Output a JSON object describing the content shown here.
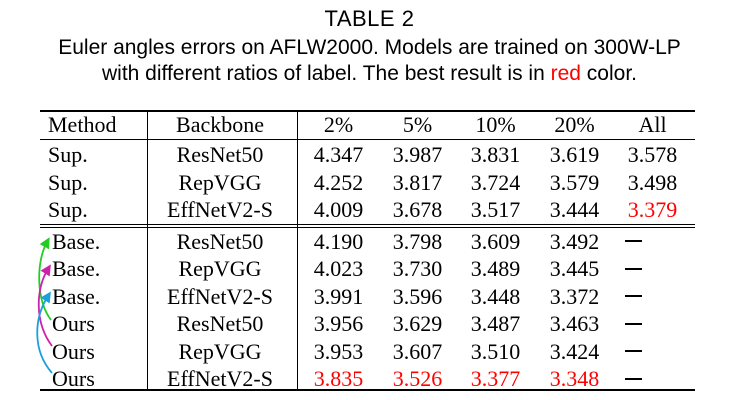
{
  "caption": {
    "table_number": "TABLE 2",
    "line1": "Euler angles errors on AFLW2000. Models are trained on 300W-LP",
    "line2_before": "with different ratios of label. The best result is in ",
    "line2_highlight": "red",
    "line2_after": " color."
  },
  "colors": {
    "text": "#000000",
    "best": "#ff0000",
    "arrow_resnet": "#22cc22",
    "arrow_repvgg": "#cc22aa",
    "arrow_effnet": "#1a9fe0"
  },
  "table": {
    "headers": [
      "Method",
      "Backbone",
      "2%",
      "5%",
      "10%",
      "20%",
      "All"
    ],
    "rows": [
      {
        "method": "Sup.",
        "backbone": "ResNet50",
        "v2": "4.347",
        "v5": "3.987",
        "v10": "3.831",
        "v20": "3.619",
        "all": "3.578"
      },
      {
        "method": "Sup.",
        "backbone": "RepVGG",
        "v2": "4.252",
        "v5": "3.817",
        "v10": "3.724",
        "v20": "3.579",
        "all": "3.498"
      },
      {
        "method": "Sup.",
        "backbone": "EffNetV2-S",
        "v2": "4.009",
        "v5": "3.678",
        "v10": "3.517",
        "v20": "3.444",
        "all": "3.379"
      },
      {
        "method": "Base.",
        "backbone": "ResNet50",
        "v2": "4.190",
        "v5": "3.798",
        "v10": "3.609",
        "v20": "3.492",
        "all": "—"
      },
      {
        "method": "Base.",
        "backbone": "RepVGG",
        "v2": "4.023",
        "v5": "3.730",
        "v10": "3.489",
        "v20": "3.445",
        "all": "—"
      },
      {
        "method": "Base.",
        "backbone": "EffNetV2-S",
        "v2": "3.991",
        "v5": "3.596",
        "v10": "3.448",
        "v20": "3.372",
        "all": "—"
      },
      {
        "method": "Ours",
        "backbone": "ResNet50",
        "v2": "3.956",
        "v5": "3.629",
        "v10": "3.487",
        "v20": "3.463",
        "all": "—"
      },
      {
        "method": "Ours",
        "backbone": "RepVGG",
        "v2": "3.953",
        "v5": "3.607",
        "v10": "3.510",
        "v20": "3.424",
        "all": "—"
      },
      {
        "method": "Ours",
        "backbone": "EffNetV2-S",
        "v2": "3.835",
        "v5": "3.526",
        "v10": "3.377",
        "v20": "3.348",
        "all": "—"
      }
    ]
  }
}
